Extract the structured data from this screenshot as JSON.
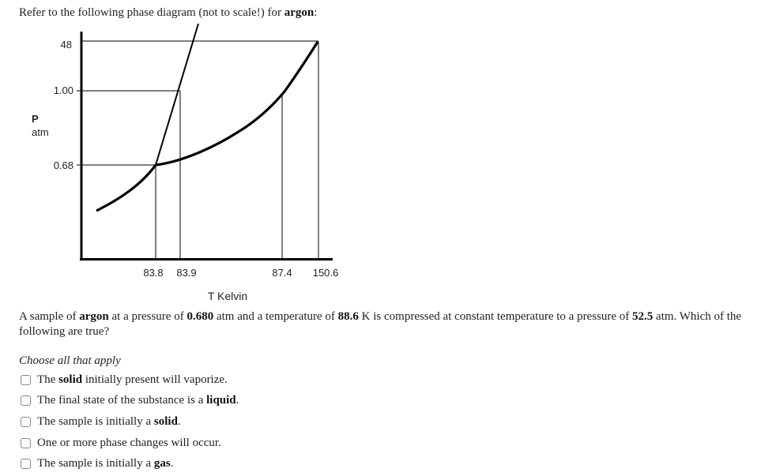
{
  "intro": {
    "text": "Refer to the following phase diagram (not to scale!) for ",
    "substance": "argon",
    "suffix": ":"
  },
  "diagram": {
    "y_axis_label_line1": "P",
    "y_axis_label_line2": "atm",
    "y_ticks": [
      "48",
      "1.00",
      "0.68"
    ],
    "x_ticks": [
      "83.8",
      "83.9",
      "87.4",
      "150.6"
    ],
    "x_axis_label": "T Kelvin"
  },
  "question": {
    "p1": "A sample of ",
    "b1": "argon",
    "p2": " at a pressure of ",
    "b2": "0.680",
    "p3": " atm and a temperature of ",
    "b3": "88.6",
    "p4": " K is compressed at constant temperature to a pressure of ",
    "b4": "52.5",
    "p5": " atm. Which of the following are true?"
  },
  "instruction": "Choose all that apply",
  "options": [
    {
      "pre": "The ",
      "bold": "solid",
      "post": " initially present will vaporize."
    },
    {
      "pre": "The final state of the substance is a ",
      "bold": "liquid",
      "post": "."
    },
    {
      "pre": "The sample is initially a ",
      "bold": "solid",
      "post": "."
    },
    {
      "pre": "One or more phase changes will occur.",
      "bold": "",
      "post": ""
    },
    {
      "pre": "The sample is initially a ",
      "bold": "gas",
      "post": "."
    }
  ]
}
